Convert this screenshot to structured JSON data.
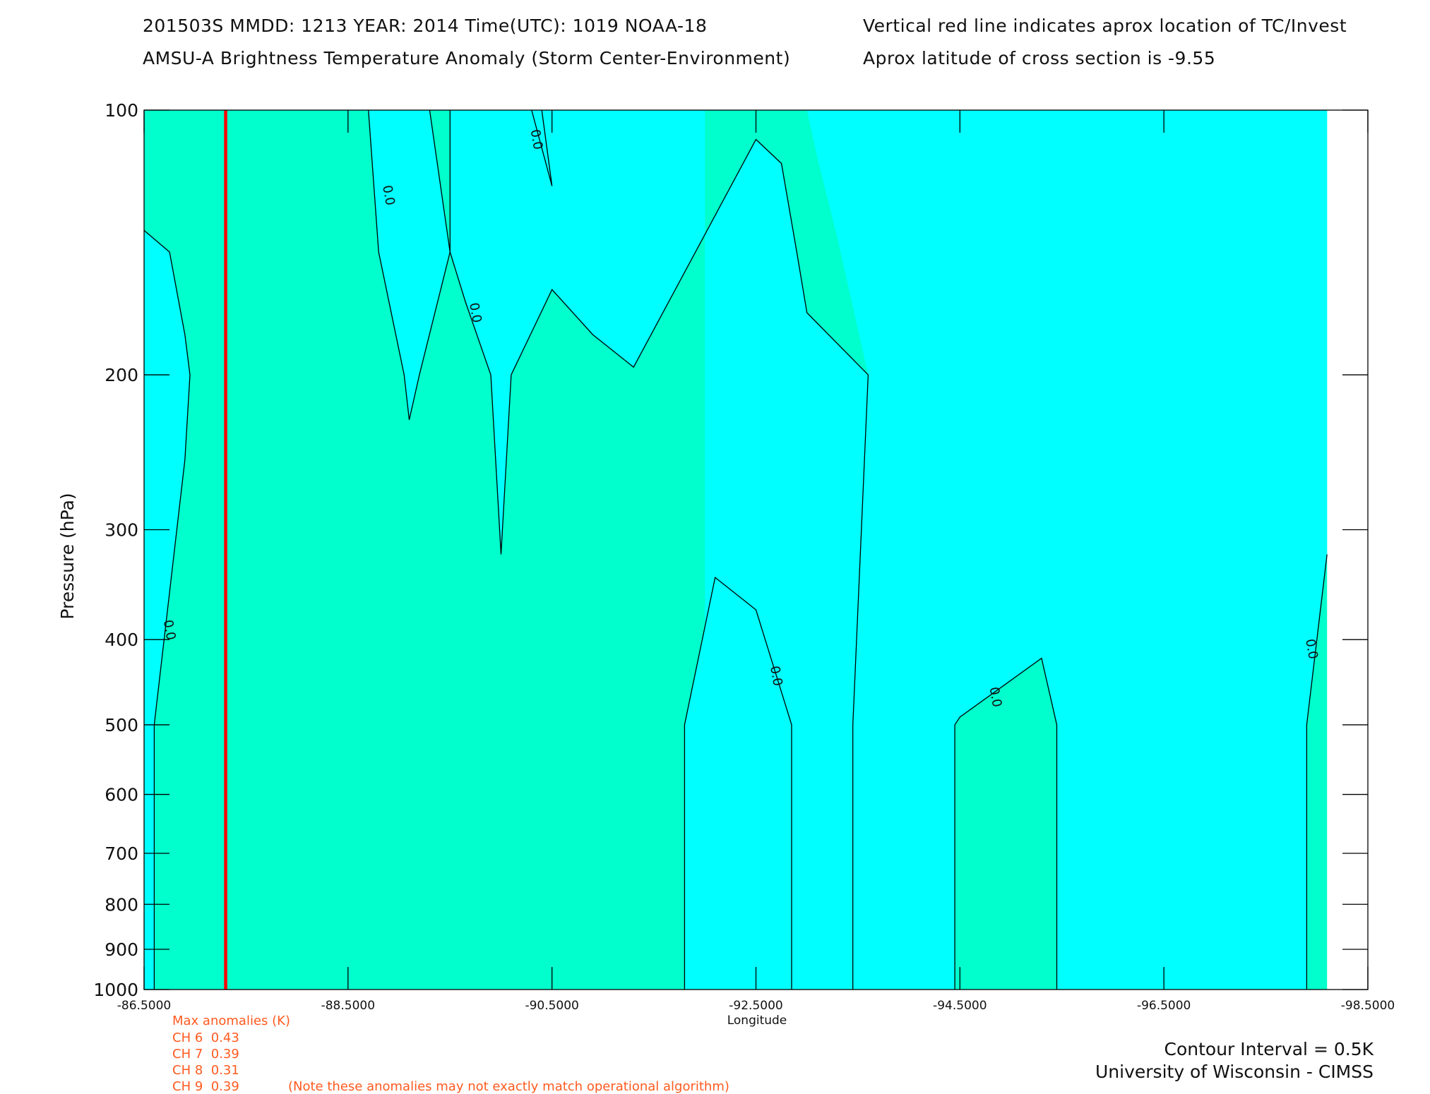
{
  "header": {
    "line1_left": "201503S  MMDD: 1213 YEAR: 2014 Time(UTC): 1019 NOAA-18",
    "line2_left": "AMSU-A Brightness Temperature Anomaly (Storm Center-Environment)",
    "line1_right": "Vertical red line indicates aprox location of TC/Invest",
    "line2_right": "Aprox latitude of cross section is -9.55"
  },
  "max_anomalies": {
    "title": "Max anomalies (K)",
    "channels": [
      {
        "label": "CH 6",
        "value": "0.43"
      },
      {
        "label": "CH 7",
        "value": "0.39"
      },
      {
        "label": "CH 8",
        "value": "0.31"
      },
      {
        "label": "CH 9",
        "value": "0.39"
      }
    ],
    "note": "(Note these anomalies may not exactly match operational algorithm)"
  },
  "footer": {
    "contour_interval": "Contour Interval = 0.5K",
    "credit": "University of Wisconsin - CIMSS"
  },
  "colors": {
    "negative_fill": "#00ffff",
    "zero_fill": "#00ffcc",
    "positive_fill": "#00ff99",
    "contour": "#000000",
    "tc_line": "#ff0000",
    "annotation": "#ff5a1f"
  },
  "chart_data": {
    "type": "contour",
    "title": "AMSU-A Brightness Temperature Anomaly (Storm Center-Environment)",
    "xlabel": "Longitude",
    "ylabel": "Pressure (hPa)",
    "xlim": [
      -86.5,
      -98.5
    ],
    "ylim": [
      1000,
      100
    ],
    "y_scale": "log",
    "x_ticks": [
      -86.5,
      -88.5,
      -90.5,
      -92.5,
      -94.5,
      -96.5,
      -98.5
    ],
    "x_tick_labels": [
      "-86.5000",
      "-88.5000",
      "-90.5000",
      "-92.5000",
      "-94.5000",
      "-96.5000",
      "-98.5000"
    ],
    "y_ticks": [
      100,
      200,
      300,
      400,
      500,
      600,
      700,
      800,
      900,
      1000
    ],
    "y_tick_labels": [
      "100",
      "200",
      "300",
      "400",
      "500",
      "600",
      "700",
      "800",
      "900",
      "1000"
    ],
    "tc_longitude": -87.3,
    "contour_interval": 0.5,
    "data_extent_x": [
      -86.5,
      -98.1
    ],
    "contour_label": "0.0",
    "regions": [
      {
        "level": "positive",
        "polygon": [
          [
            -91.8,
            1000
          ],
          [
            -91.8,
            500
          ],
          [
            -92.1,
            340
          ],
          [
            -92.5,
            370
          ],
          [
            -92.85,
            500
          ],
          [
            -92.85,
            1000
          ]
        ]
      },
      {
        "level": "negative",
        "polygon": [
          [
            -92.0,
            100
          ],
          [
            -92.0,
            1000
          ],
          [
            -92.85,
            1000
          ],
          [
            -92.85,
            500
          ],
          [
            -92.5,
            370
          ],
          [
            -92.1,
            340
          ],
          [
            -91.8,
            500
          ],
          [
            -91.8,
            1000
          ],
          [
            -93.45,
            1000
          ],
          [
            -93.45,
            500
          ],
          [
            -93.6,
            200
          ],
          [
            -93.0,
            170
          ],
          [
            -92.9,
            145
          ],
          [
            -92.75,
            115
          ],
          [
            -92.5,
            108
          ],
          [
            -91.3,
            196
          ],
          [
            -90.9,
            180
          ],
          [
            -90.5,
            160
          ],
          [
            -90.1,
            200
          ],
          [
            -90.0,
            320
          ],
          [
            -89.9,
            200
          ],
          [
            -89.65,
            165
          ],
          [
            -89.5,
            145
          ],
          [
            -89.5,
            100
          ]
        ]
      },
      {
        "level": "negative",
        "polygon": [
          [
            -90.2,
            100
          ],
          [
            -90.4,
            100
          ],
          [
            -90.5,
            122
          ],
          [
            -90.3,
            100
          ]
        ]
      },
      {
        "level": "negative",
        "polygon": [
          [
            -88.7,
            100
          ],
          [
            -89.3,
            100
          ],
          [
            -89.5,
            145
          ],
          [
            -89.2,
            200
          ],
          [
            -89.1,
            225
          ],
          [
            -89.05,
            200
          ],
          [
            -88.8,
            145
          ]
        ]
      },
      {
        "level": "negative",
        "polygon": [
          [
            -86.5,
            137
          ],
          [
            -86.75,
            145
          ],
          [
            -86.9,
            180
          ],
          [
            -86.95,
            200
          ],
          [
            -86.9,
            250
          ],
          [
            -86.6,
            500
          ],
          [
            -86.6,
            1000
          ],
          [
            -86.5,
            1000
          ]
        ]
      },
      {
        "level": "negative",
        "polygon": [
          [
            -93.45,
            100
          ],
          [
            -98.1,
            100
          ],
          [
            -98.1,
            320
          ],
          [
            -97.9,
            500
          ],
          [
            -97.9,
            1000
          ],
          [
            -95.45,
            1000
          ],
          [
            -95.45,
            500
          ],
          [
            -95.3,
            420
          ],
          [
            -94.5,
            490
          ],
          [
            -94.45,
            500
          ],
          [
            -94.45,
            1000
          ],
          [
            -93.45,
            1000
          ],
          [
            -93.45,
            500
          ],
          [
            -93.6,
            200
          ],
          [
            -93.3,
            140
          ],
          [
            -93.1,
            113
          ],
          [
            -93.0,
            100
          ]
        ]
      }
    ],
    "contours": [
      {
        "points": [
          [
            -86.5,
            137
          ],
          [
            -86.75,
            145
          ],
          [
            -86.9,
            180
          ],
          [
            -86.95,
            200
          ],
          [
            -86.9,
            250
          ],
          [
            -86.6,
            500
          ],
          [
            -86.6,
            1000
          ]
        ],
        "label_at": [
          -86.75,
          390
        ],
        "label": "0.0"
      },
      {
        "points": [
          [
            -88.7,
            100
          ],
          [
            -88.8,
            145
          ],
          [
            -89.05,
            200
          ],
          [
            -89.1,
            225
          ],
          [
            -89.2,
            200
          ],
          [
            -89.5,
            145
          ],
          [
            -89.3,
            100
          ]
        ],
        "label_at": [
          -88.9,
          125
        ],
        "label": "0.0"
      },
      {
        "points": [
          [
            -90.4,
            100
          ],
          [
            -90.5,
            122
          ],
          [
            -90.3,
            100
          ]
        ],
        "label_at": [
          -90.35,
          108
        ],
        "label": "0.0"
      },
      {
        "points": [
          [
            -89.5,
            100
          ],
          [
            -89.5,
            145
          ],
          [
            -89.65,
            165
          ],
          [
            -89.9,
            200
          ],
          [
            -90.0,
            320
          ],
          [
            -90.1,
            200
          ],
          [
            -90.5,
            160
          ],
          [
            -90.9,
            180
          ],
          [
            -91.3,
            196
          ],
          [
            -92.5,
            108
          ],
          [
            -92.75,
            115
          ],
          [
            -92.9,
            145
          ],
          [
            -93.0,
            170
          ],
          [
            -93.6,
            200
          ],
          [
            -93.45,
            500
          ],
          [
            -93.45,
            1000
          ]
        ],
        "label_at": [
          -89.75,
          170
        ],
        "label": "0.0"
      },
      {
        "points": [
          [
            -91.8,
            1000
          ],
          [
            -91.8,
            500
          ],
          [
            -92.1,
            340
          ],
          [
            -92.5,
            370
          ],
          [
            -92.85,
            500
          ],
          [
            -92.85,
            1000
          ]
        ],
        "label_at": [
          -92.7,
          440
        ],
        "label": "0.0"
      },
      {
        "points": [
          [
            -94.45,
            1000
          ],
          [
            -94.45,
            500
          ],
          [
            -94.5,
            490
          ],
          [
            -95.3,
            420
          ],
          [
            -95.45,
            500
          ],
          [
            -95.45,
            1000
          ]
        ],
        "label_at": [
          -94.85,
          465
        ],
        "label": "0.0"
      },
      {
        "points": [
          [
            -97.9,
            1000
          ],
          [
            -97.9,
            500
          ],
          [
            -98.1,
            320
          ]
        ],
        "label_at": [
          -97.95,
          410
        ],
        "label": "0.0"
      }
    ],
    "grid": false,
    "legend": "none"
  }
}
